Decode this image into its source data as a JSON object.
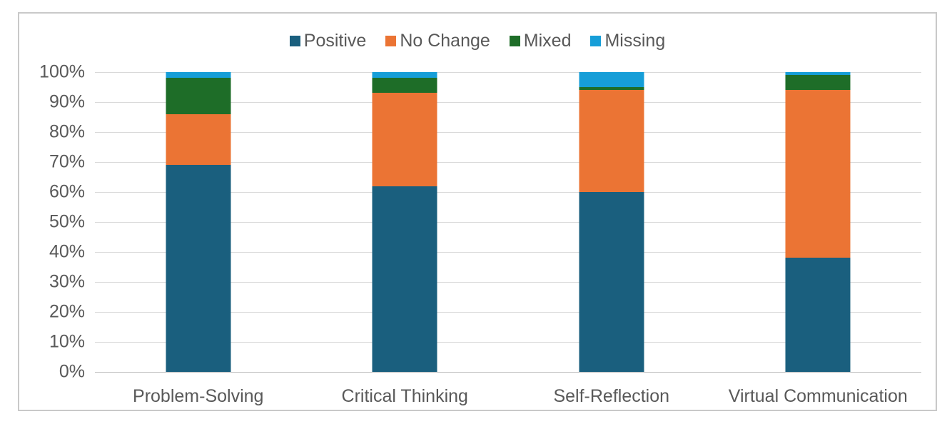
{
  "chart_data": {
    "type": "bar",
    "variant": "stacked-100-percent-column",
    "title": "",
    "categories": [
      "Problem-Solving",
      "Critical Thinking",
      "Self-Reflection",
      "Virtual Communication"
    ],
    "series": [
      {
        "name": "Positive",
        "color": "#1A5F7E",
        "values": [
          69,
          62,
          60,
          38
        ]
      },
      {
        "name": "No Change",
        "color": "#EB7434",
        "values": [
          17,
          31,
          34,
          56
        ]
      },
      {
        "name": "Mixed",
        "color": "#1E6D28",
        "values": [
          12,
          5,
          1,
          5
        ]
      },
      {
        "name": "Missing",
        "color": "#169ED8",
        "values": [
          2,
          2,
          5,
          1
        ]
      }
    ],
    "y_axis": {
      "min": 0,
      "max": 100,
      "tick_step": 10,
      "tick_labels": [
        "0%",
        "10%",
        "20%",
        "30%",
        "40%",
        "50%",
        "60%",
        "70%",
        "80%",
        "90%",
        "100%"
      ]
    },
    "x_axis": {
      "label": ""
    },
    "legend": {
      "position": "top",
      "items": [
        "Positive",
        "No Change",
        "Mixed",
        "Missing"
      ]
    },
    "grid": true,
    "colors": {
      "gridline": "#D9D9D9",
      "axis_line": "#C0C0C0",
      "text": "#595959",
      "frame_border": "#C9C9C9",
      "background": "#FFFFFF"
    }
  }
}
